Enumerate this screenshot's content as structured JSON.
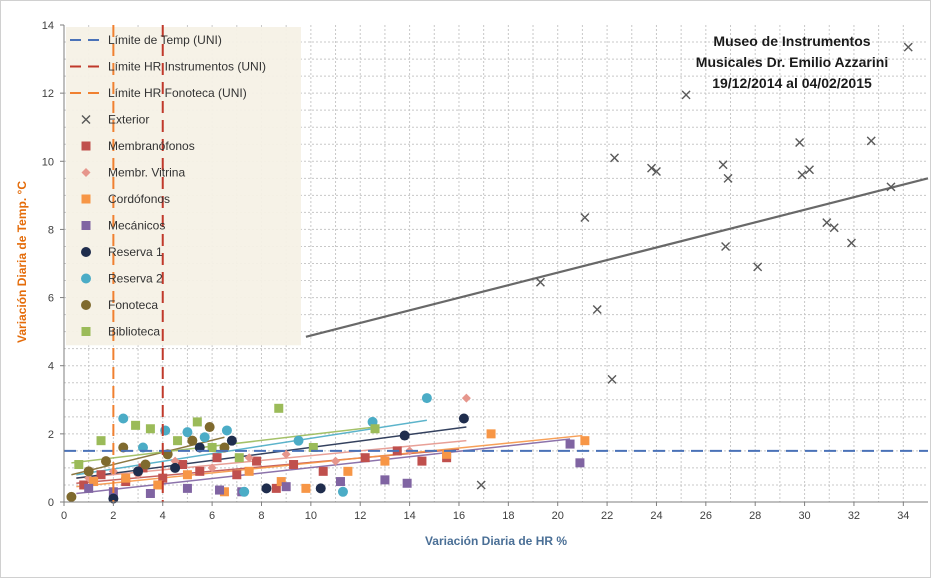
{
  "chart_data": {
    "type": "scatter",
    "title_lines": [
      "Museo de Instrumentos",
      "Musicales Dr. Emilio Azzarini",
      "19/12/2014 al 04/02/2015"
    ],
    "xlabel": "Variación Diaria de HR %",
    "ylabel": "Variación Diaria de Temp. °C",
    "xlim": [
      0,
      35
    ],
    "ylim": [
      0,
      14
    ],
    "xticks": [
      "0",
      "2",
      "4",
      "6",
      "8",
      "10",
      "12",
      "14",
      "16",
      "18",
      "20",
      "22",
      "24",
      "26",
      "28",
      "30",
      "32",
      "34"
    ],
    "yticks": [
      "0",
      "2",
      "4",
      "6",
      "8",
      "10",
      "12",
      "14"
    ],
    "grid": true,
    "legend_position": "top-left",
    "reference_lines": [
      {
        "name": "Límite de Temp (UNI)",
        "axis": "y",
        "value": 1.5,
        "color": "#4a72b8"
      },
      {
        "name": "Límite HR Instrumentos (UNI)",
        "axis": "x",
        "value": 4,
        "color": "#c0392b"
      },
      {
        "name": "Límite HR Fonoteca (UNI)",
        "axis": "x",
        "value": 2,
        "color": "#f08030"
      }
    ],
    "series": [
      {
        "name": "Exterior",
        "marker": "x",
        "color": "#595959",
        "points": [
          [
            34.2,
            13.35
          ],
          [
            25.2,
            11.95
          ],
          [
            22.3,
            10.1
          ],
          [
            23.8,
            9.8
          ],
          [
            24,
            9.7
          ],
          [
            26.7,
            9.9
          ],
          [
            26.9,
            9.5
          ],
          [
            29.8,
            10.55
          ],
          [
            32.7,
            10.6
          ],
          [
            29.9,
            9.6
          ],
          [
            30.2,
            9.75
          ],
          [
            33.5,
            9.25
          ],
          [
            21.1,
            8.35
          ],
          [
            30.9,
            8.2
          ],
          [
            31.2,
            8.05
          ],
          [
            26.8,
            7.5
          ],
          [
            31.9,
            7.6
          ],
          [
            28.1,
            6.9
          ],
          [
            19.3,
            6.45
          ],
          [
            21.6,
            5.65
          ],
          [
            22.2,
            3.6
          ],
          [
            16.9,
            0.5
          ]
        ],
        "trend": [
          [
            9.8,
            4.85
          ],
          [
            35,
            9.5
          ]
        ]
      },
      {
        "name": "Membranófonos",
        "marker": "square",
        "color": "#c0504d",
        "points": [
          [
            0.8,
            0.5
          ],
          [
            1.5,
            0.8
          ],
          [
            2.5,
            0.6
          ],
          [
            3.2,
            1
          ],
          [
            4,
            0.7
          ],
          [
            4.8,
            1.1
          ],
          [
            5.5,
            0.9
          ],
          [
            6.2,
            1.3
          ],
          [
            7,
            0.8
          ],
          [
            7.8,
            1.2
          ],
          [
            8.6,
            0.4
          ],
          [
            9.3,
            1.1
          ],
          [
            10.5,
            0.9
          ],
          [
            12.2,
            1.3
          ],
          [
            13.5,
            1.5
          ],
          [
            14.5,
            1.2
          ],
          [
            15.5,
            1.3
          ]
        ],
        "trend": [
          [
            0.5,
            0.55
          ],
          [
            16,
            1.55
          ]
        ]
      },
      {
        "name": "Membr. Vitrina",
        "marker": "diamond",
        "color": "#e6968c",
        "points": [
          [
            1,
            0.7
          ],
          [
            2,
            0.9
          ],
          [
            3,
            0.8
          ],
          [
            4.5,
            1.2
          ],
          [
            6,
            1
          ],
          [
            7.5,
            1.3
          ],
          [
            9,
            1.4
          ],
          [
            11,
            1.2
          ],
          [
            14,
            1.5
          ],
          [
            16.3,
            3.05
          ]
        ],
        "trend": [
          [
            0.5,
            0.7
          ],
          [
            16.3,
            1.8
          ]
        ]
      },
      {
        "name": "Cordófonos",
        "marker": "square",
        "color": "#f79646",
        "points": [
          [
            1.2,
            0.6
          ],
          [
            2.5,
            0.7
          ],
          [
            3.8,
            0.5
          ],
          [
            5,
            0.8
          ],
          [
            6.5,
            0.3
          ],
          [
            7.5,
            0.9
          ],
          [
            8.8,
            0.6
          ],
          [
            9.8,
            0.4
          ],
          [
            11.5,
            0.9
          ],
          [
            13,
            1.2
          ],
          [
            15.5,
            1.4
          ],
          [
            17.3,
            2
          ],
          [
            21.1,
            1.8
          ]
        ],
        "trend": [
          [
            0.5,
            0.45
          ],
          [
            21,
            1.95
          ]
        ]
      },
      {
        "name": "Mecánicos",
        "marker": "square",
        "color": "#8064a2",
        "points": [
          [
            1,
            0.4
          ],
          [
            2,
            0.3
          ],
          [
            3.5,
            0.25
          ],
          [
            5,
            0.4
          ],
          [
            6.3,
            0.35
          ],
          [
            7.2,
            0.3
          ],
          [
            9,
            0.45
          ],
          [
            11.2,
            0.6
          ],
          [
            13,
            0.65
          ],
          [
            13.9,
            0.55
          ],
          [
            20.5,
            1.7
          ],
          [
            20.9,
            1.15
          ]
        ],
        "trend": [
          [
            0.5,
            0.25
          ],
          [
            20.5,
            1.85
          ]
        ]
      },
      {
        "name": "Reserva 1",
        "marker": "circle",
        "color": "#1f2d4d",
        "points": [
          [
            2,
            0.1
          ],
          [
            3,
            0.9
          ],
          [
            4.5,
            1
          ],
          [
            5.5,
            1.6
          ],
          [
            6.8,
            1.8
          ],
          [
            8.2,
            0.4
          ],
          [
            10.4,
            0.4
          ],
          [
            13.8,
            1.95
          ],
          [
            16.2,
            2.45
          ]
        ],
        "trend": [
          [
            0.5,
            0.7
          ],
          [
            16.3,
            2.2
          ]
        ]
      },
      {
        "name": "Reserva 2",
        "marker": "circle",
        "color": "#4bacc6",
        "points": [
          [
            2.4,
            2.45
          ],
          [
            3.2,
            1.6
          ],
          [
            4.1,
            2.1
          ],
          [
            5,
            2.05
          ],
          [
            5.7,
            1.9
          ],
          [
            6.6,
            2.1
          ],
          [
            7.3,
            0.3
          ],
          [
            9.5,
            1.8
          ],
          [
            11.3,
            0.3
          ],
          [
            12.5,
            2.35
          ],
          [
            14.7,
            3.05
          ]
        ],
        "trend": [
          [
            0.5,
            0.8
          ],
          [
            14.7,
            2.4
          ]
        ]
      },
      {
        "name": "Fonoteca",
        "marker": "circle",
        "color": "#7f6a2e",
        "points": [
          [
            0.3,
            0.15
          ],
          [
            1,
            0.9
          ],
          [
            1.7,
            1.2
          ],
          [
            2.4,
            1.6
          ],
          [
            3.3,
            1.1
          ],
          [
            4.2,
            1.4
          ],
          [
            5.2,
            1.8
          ],
          [
            5.9,
            2.2
          ],
          [
            6.5,
            1.6
          ]
        ],
        "trend": [
          [
            0.3,
            0.8
          ],
          [
            6.5,
            1.9
          ]
        ]
      },
      {
        "name": "Biblioteca",
        "marker": "square",
        "color": "#9bbb59",
        "points": [
          [
            0.6,
            1.1
          ],
          [
            1.5,
            1.8
          ],
          [
            2.9,
            2.25
          ],
          [
            3.5,
            2.15
          ],
          [
            4.6,
            1.8
          ],
          [
            5.4,
            2.35
          ],
          [
            6,
            1.6
          ],
          [
            7.1,
            1.3
          ],
          [
            8.7,
            2.75
          ],
          [
            10.1,
            1.6
          ],
          [
            12.6,
            2.15
          ]
        ],
        "trend": [
          [
            0.3,
            1.15
          ],
          [
            12.6,
            2.2
          ]
        ]
      }
    ]
  }
}
